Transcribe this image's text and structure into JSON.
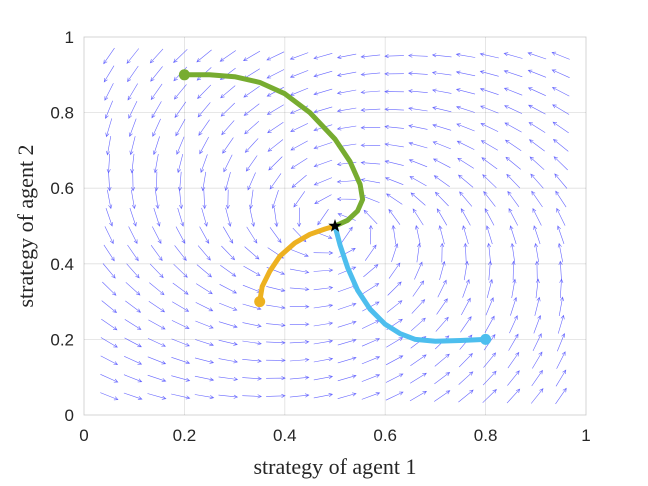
{
  "chart_data": {
    "type": "line",
    "title": "",
    "xlabel": "strategy of agent 1",
    "ylabel": "strategy of agent 2",
    "xlim": [
      0,
      1
    ],
    "ylim": [
      0,
      1
    ],
    "xticks": [
      "0",
      "0.2",
      "0.4",
      "0.6",
      "0.8",
      "1"
    ],
    "yticks": [
      "0",
      "0.2",
      "0.4",
      "0.6",
      "0.8",
      "1"
    ],
    "grid": true,
    "vector_field_color": "#4b4bff",
    "equilibrium": {
      "x": 0.5,
      "y": 0.5,
      "color": "#000000"
    },
    "series": [
      {
        "color": "#77ac30",
        "start": {
          "x": 0.2,
          "y": 0.9
        },
        "x": [
          0.2,
          0.25,
          0.3,
          0.35,
          0.4,
          0.45,
          0.5,
          0.53,
          0.55,
          0.555,
          0.545,
          0.525,
          0.5
        ],
        "y": [
          0.9,
          0.9,
          0.895,
          0.88,
          0.85,
          0.8,
          0.73,
          0.67,
          0.61,
          0.57,
          0.54,
          0.515,
          0.5
        ]
      },
      {
        "color": "#edb120",
        "start": {
          "x": 0.35,
          "y": 0.3
        },
        "x": [
          0.35,
          0.355,
          0.37,
          0.39,
          0.42,
          0.45,
          0.48,
          0.5
        ],
        "y": [
          0.3,
          0.34,
          0.38,
          0.42,
          0.455,
          0.478,
          0.492,
          0.5
        ]
      },
      {
        "color": "#4dbeee",
        "start": {
          "x": 0.8,
          "y": 0.2
        },
        "x": [
          0.5,
          0.51,
          0.525,
          0.545,
          0.57,
          0.6,
          0.63,
          0.66,
          0.7,
          0.75,
          0.8
        ],
        "y": [
          0.5,
          0.45,
          0.39,
          0.33,
          0.28,
          0.24,
          0.215,
          0.2,
          0.195,
          0.197,
          0.2
        ]
      }
    ]
  }
}
